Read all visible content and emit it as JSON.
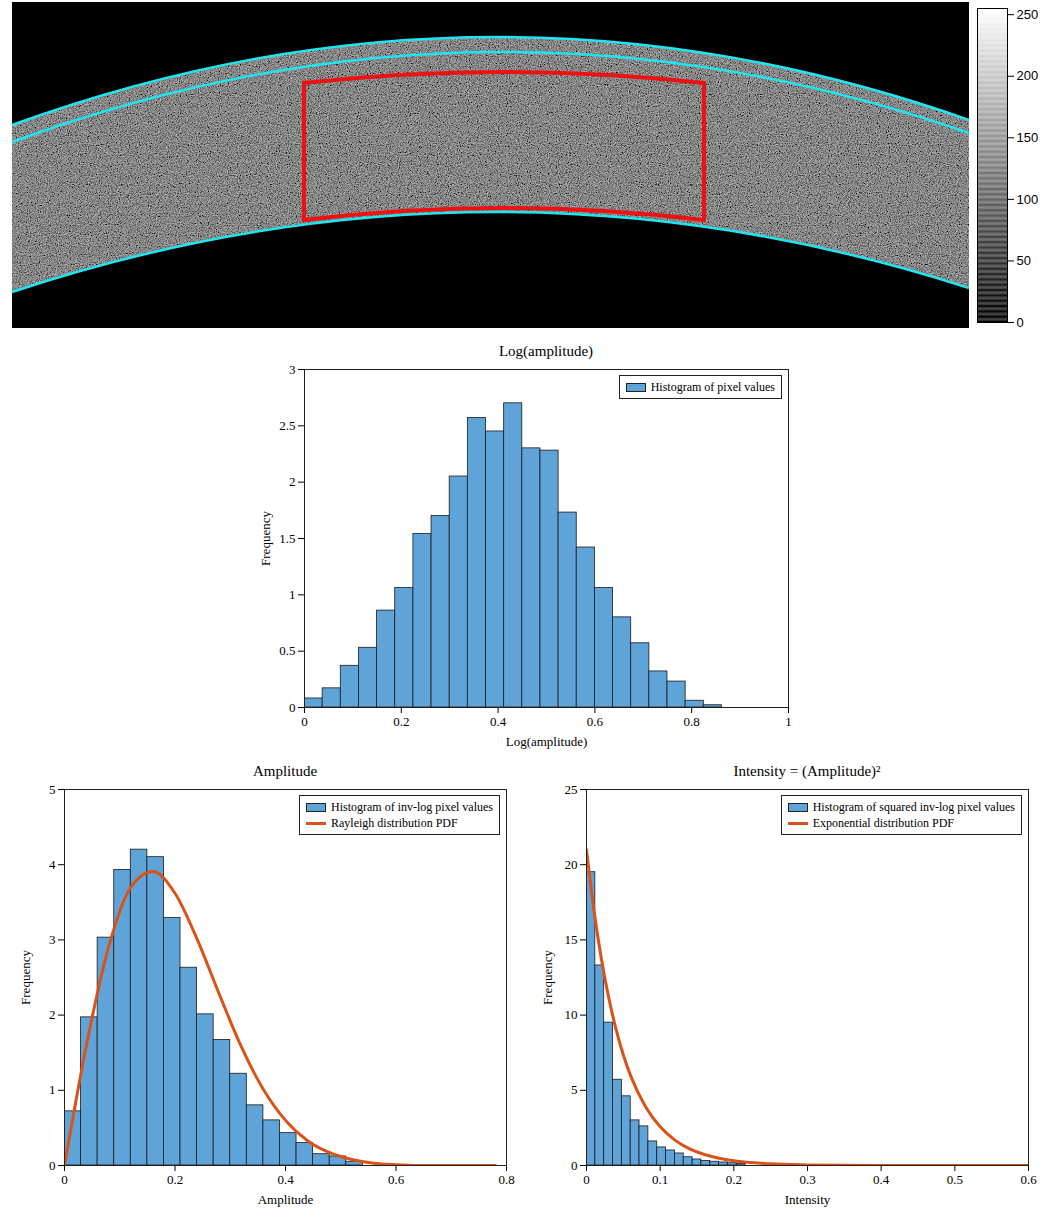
{
  "chart_data": [
    {
      "type": "image",
      "colorbar": {
        "range": [
          0,
          255
        ],
        "ticks": [
          0,
          50,
          100,
          150,
          200,
          250
        ]
      }
    },
    {
      "type": "histogram",
      "title": "Log(amplitude)",
      "x_label": "Log(amplitude)",
      "y_label": "Frequency",
      "xlim": [
        0,
        1
      ],
      "xticks": [
        0,
        0.2,
        0.4,
        0.6,
        0.8,
        1
      ],
      "ylim": [
        0,
        3
      ],
      "yticks": [
        0,
        0.5,
        1,
        1.5,
        2,
        2.5,
        3
      ],
      "legend": "top-right",
      "series": [
        {
          "name": "Histogram of pixel values",
          "type": "bar",
          "color": "#5fa4d9",
          "bins": [
            0,
            0.0375,
            0.075,
            0.1125,
            0.15,
            0.1875,
            0.225,
            0.2625,
            0.3,
            0.3375,
            0.375,
            0.4125,
            0.45,
            0.4875,
            0.525,
            0.5625,
            0.6,
            0.6375,
            0.675,
            0.7125,
            0.75,
            0.7875,
            0.825,
            0.8625
          ],
          "values": [
            0.08,
            0.17,
            0.37,
            0.53,
            0.86,
            1.06,
            1.54,
            1.7,
            2.05,
            2.57,
            2.45,
            2.7,
            2.3,
            2.28,
            1.73,
            1.42,
            1.06,
            0.8,
            0.57,
            0.32,
            0.23,
            0.06,
            0.02
          ]
        }
      ]
    },
    {
      "type": "histogram",
      "title": "Amplitude",
      "x_label": "Amplitude",
      "y_label": "Frequency",
      "xlim": [
        0,
        0.8
      ],
      "xticks": [
        0,
        0.2,
        0.4,
        0.6,
        0.8
      ],
      "ylim": [
        0,
        5
      ],
      "yticks": [
        0,
        1,
        2,
        3,
        4,
        5
      ],
      "legend": "top-right",
      "series": [
        {
          "name": "Histogram of inv-log pixel values",
          "type": "bar",
          "color": "#5fa4d9",
          "bins": [
            0,
            0.03,
            0.06,
            0.09,
            0.12,
            0.15,
            0.18,
            0.21,
            0.24,
            0.27,
            0.3,
            0.33,
            0.36,
            0.39,
            0.42,
            0.45,
            0.48,
            0.51,
            0.54
          ],
          "values": [
            0.72,
            1.97,
            3.03,
            3.93,
            4.2,
            4.1,
            3.29,
            2.63,
            2.01,
            1.67,
            1.22,
            0.8,
            0.6,
            0.43,
            0.3,
            0.15,
            0.12,
            0.05
          ]
        },
        {
          "name": "Rayleigh distribution PDF",
          "type": "line",
          "color": "#d95319",
          "x": [
            0,
            0.04,
            0.08,
            0.12,
            0.16,
            0.2,
            0.24,
            0.28,
            0.32,
            0.36,
            0.4,
            0.44,
            0.48,
            0.52,
            0.56,
            0.6,
            0.64,
            0.7,
            0.78
          ],
          "values": [
            0,
            1.61,
            2.91,
            3.7,
            3.91,
            3.62,
            3.01,
            2.28,
            1.58,
            1.01,
            0.6,
            0.33,
            0.17,
            0.08,
            0.03,
            0.01,
            0,
            0,
            0
          ]
        }
      ]
    },
    {
      "type": "histogram",
      "title": "Intensity = (Amplitude)²",
      "x_label": "Intensity",
      "y_label": "Frequency",
      "xlim": [
        0,
        0.6
      ],
      "xticks": [
        0,
        0.1,
        0.2,
        0.3,
        0.4,
        0.5,
        0.6
      ],
      "ylim": [
        0,
        25
      ],
      "yticks": [
        0,
        5,
        10,
        15,
        20,
        25
      ],
      "legend": "top-right",
      "series": [
        {
          "name": "Histogram of squared inv-log pixel values",
          "type": "bar",
          "color": "#5fa4d9",
          "bins": [
            0,
            0.012,
            0.024,
            0.036,
            0.048,
            0.06,
            0.072,
            0.084,
            0.096,
            0.108,
            0.12,
            0.132,
            0.144,
            0.156,
            0.168,
            0.18,
            0.192,
            0.204,
            0.216
          ],
          "values": [
            19.5,
            13.3,
            9.5,
            5.7,
            4.6,
            3.0,
            2.6,
            1.6,
            1.2,
            1.0,
            0.8,
            0.55,
            0.4,
            0.3,
            0.25,
            0.2,
            0.15,
            0.1
          ]
        },
        {
          "name": "Exponential distribution PDF",
          "type": "line",
          "color": "#d95319",
          "x": [
            0,
            0.01,
            0.02,
            0.03,
            0.04,
            0.05,
            0.06,
            0.08,
            0.1,
            0.12,
            0.14,
            0.16,
            0.18,
            0.2,
            0.25,
            0.3,
            0.35,
            0.4,
            0.5,
            0.6
          ],
          "values": [
            21,
            17,
            13.8,
            11.2,
            9.07,
            7.35,
            5.96,
            3.92,
            2.57,
            1.69,
            1.11,
            0.73,
            0.48,
            0.31,
            0.11,
            0.04,
            0.01,
            0,
            0,
            0
          ]
        }
      ]
    }
  ]
}
